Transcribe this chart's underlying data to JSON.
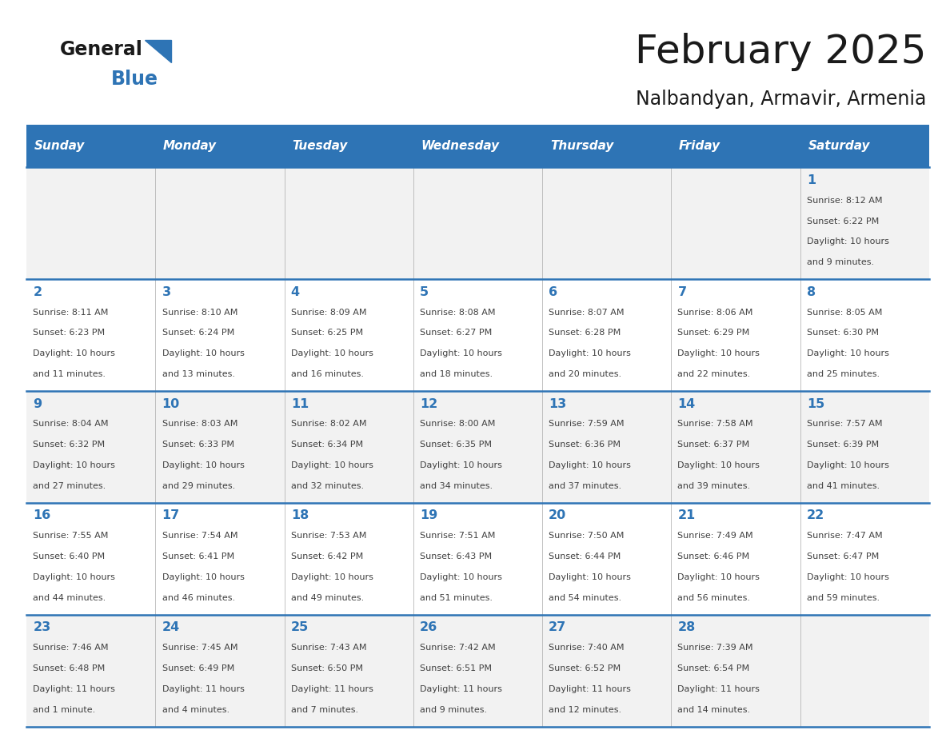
{
  "title": "February 2025",
  "subtitle": "Nalbandyan, Armavir, Armenia",
  "header_color": "#2E74B5",
  "header_text_color": "#FFFFFF",
  "day_names": [
    "Sunday",
    "Monday",
    "Tuesday",
    "Wednesday",
    "Thursday",
    "Friday",
    "Saturday"
  ],
  "background_color": "#FFFFFF",
  "cell_bg_light": "#F2F2F2",
  "cell_bg_white": "#FFFFFF",
  "border_color": "#2E74B5",
  "sep_color": "#AAAAAA",
  "text_color": "#404040",
  "number_color": "#2E74B5",
  "title_color": "#1a1a1a",
  "subtitle_color": "#1a1a1a",
  "logo_general_color": "#1a1a1a",
  "logo_blue_color": "#2E74B5",
  "logo_triangle_color": "#2E74B5",
  "calendar_data": [
    [
      {
        "day": null
      },
      {
        "day": null
      },
      {
        "day": null
      },
      {
        "day": null
      },
      {
        "day": null
      },
      {
        "day": null
      },
      {
        "day": 1,
        "sunrise": "8:12 AM",
        "sunset": "6:22 PM",
        "daylight": "10 hours and 9 minutes."
      }
    ],
    [
      {
        "day": 2,
        "sunrise": "8:11 AM",
        "sunset": "6:23 PM",
        "daylight": "10 hours and 11 minutes."
      },
      {
        "day": 3,
        "sunrise": "8:10 AM",
        "sunset": "6:24 PM",
        "daylight": "10 hours and 13 minutes."
      },
      {
        "day": 4,
        "sunrise": "8:09 AM",
        "sunset": "6:25 PM",
        "daylight": "10 hours and 16 minutes."
      },
      {
        "day": 5,
        "sunrise": "8:08 AM",
        "sunset": "6:27 PM",
        "daylight": "10 hours and 18 minutes."
      },
      {
        "day": 6,
        "sunrise": "8:07 AM",
        "sunset": "6:28 PM",
        "daylight": "10 hours and 20 minutes."
      },
      {
        "day": 7,
        "sunrise": "8:06 AM",
        "sunset": "6:29 PM",
        "daylight": "10 hours and 22 minutes."
      },
      {
        "day": 8,
        "sunrise": "8:05 AM",
        "sunset": "6:30 PM",
        "daylight": "10 hours and 25 minutes."
      }
    ],
    [
      {
        "day": 9,
        "sunrise": "8:04 AM",
        "sunset": "6:32 PM",
        "daylight": "10 hours and 27 minutes."
      },
      {
        "day": 10,
        "sunrise": "8:03 AM",
        "sunset": "6:33 PM",
        "daylight": "10 hours and 29 minutes."
      },
      {
        "day": 11,
        "sunrise": "8:02 AM",
        "sunset": "6:34 PM",
        "daylight": "10 hours and 32 minutes."
      },
      {
        "day": 12,
        "sunrise": "8:00 AM",
        "sunset": "6:35 PM",
        "daylight": "10 hours and 34 minutes."
      },
      {
        "day": 13,
        "sunrise": "7:59 AM",
        "sunset": "6:36 PM",
        "daylight": "10 hours and 37 minutes."
      },
      {
        "day": 14,
        "sunrise": "7:58 AM",
        "sunset": "6:37 PM",
        "daylight": "10 hours and 39 minutes."
      },
      {
        "day": 15,
        "sunrise": "7:57 AM",
        "sunset": "6:39 PM",
        "daylight": "10 hours and 41 minutes."
      }
    ],
    [
      {
        "day": 16,
        "sunrise": "7:55 AM",
        "sunset": "6:40 PM",
        "daylight": "10 hours and 44 minutes."
      },
      {
        "day": 17,
        "sunrise": "7:54 AM",
        "sunset": "6:41 PM",
        "daylight": "10 hours and 46 minutes."
      },
      {
        "day": 18,
        "sunrise": "7:53 AM",
        "sunset": "6:42 PM",
        "daylight": "10 hours and 49 minutes."
      },
      {
        "day": 19,
        "sunrise": "7:51 AM",
        "sunset": "6:43 PM",
        "daylight": "10 hours and 51 minutes."
      },
      {
        "day": 20,
        "sunrise": "7:50 AM",
        "sunset": "6:44 PM",
        "daylight": "10 hours and 54 minutes."
      },
      {
        "day": 21,
        "sunrise": "7:49 AM",
        "sunset": "6:46 PM",
        "daylight": "10 hours and 56 minutes."
      },
      {
        "day": 22,
        "sunrise": "7:47 AM",
        "sunset": "6:47 PM",
        "daylight": "10 hours and 59 minutes."
      }
    ],
    [
      {
        "day": 23,
        "sunrise": "7:46 AM",
        "sunset": "6:48 PM",
        "daylight": "11 hours and 1 minute."
      },
      {
        "day": 24,
        "sunrise": "7:45 AM",
        "sunset": "6:49 PM",
        "daylight": "11 hours and 4 minutes."
      },
      {
        "day": 25,
        "sunrise": "7:43 AM",
        "sunset": "6:50 PM",
        "daylight": "11 hours and 7 minutes."
      },
      {
        "day": 26,
        "sunrise": "7:42 AM",
        "sunset": "6:51 PM",
        "daylight": "11 hours and 9 minutes."
      },
      {
        "day": 27,
        "sunrise": "7:40 AM",
        "sunset": "6:52 PM",
        "daylight": "11 hours and 12 minutes."
      },
      {
        "day": 28,
        "sunrise": "7:39 AM",
        "sunset": "6:54 PM",
        "daylight": "11 hours and 14 minutes."
      },
      {
        "day": null
      }
    ]
  ]
}
